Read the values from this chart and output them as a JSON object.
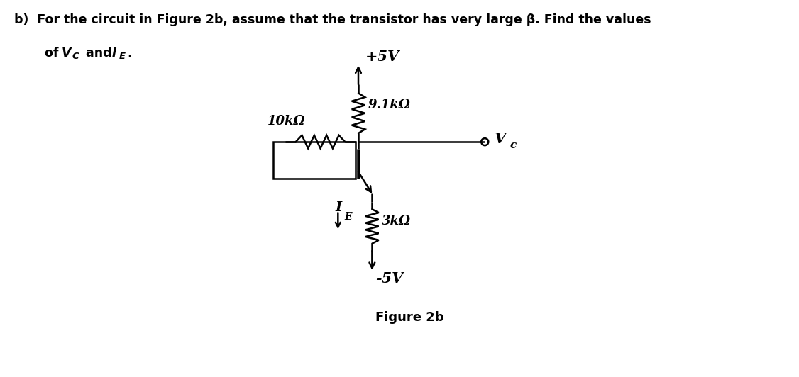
{
  "bg": "#ffffff",
  "lc": "#000000",
  "fig_label": "Figure 2b",
  "vcc": "+5V",
  "vee": "-5V",
  "r_top_label": "9.1kΩ",
  "r_left_label": "10kΩ",
  "r_bot_label": "3kΩ",
  "vc_label_main": "V",
  "vc_label_sub": "c",
  "ie_label_main": "I",
  "ie_label_sub": "E",
  "title_main": "b)  For the circuit in Figure 2b, assume that the transistor has very large β. Find the values",
  "title_line2_pre": "   of ",
  "title_vc": "V",
  "title_vc_sub": "C",
  "title_and": " and ",
  "title_ie": "I",
  "title_ie_sub": "E",
  "title_dot": "."
}
